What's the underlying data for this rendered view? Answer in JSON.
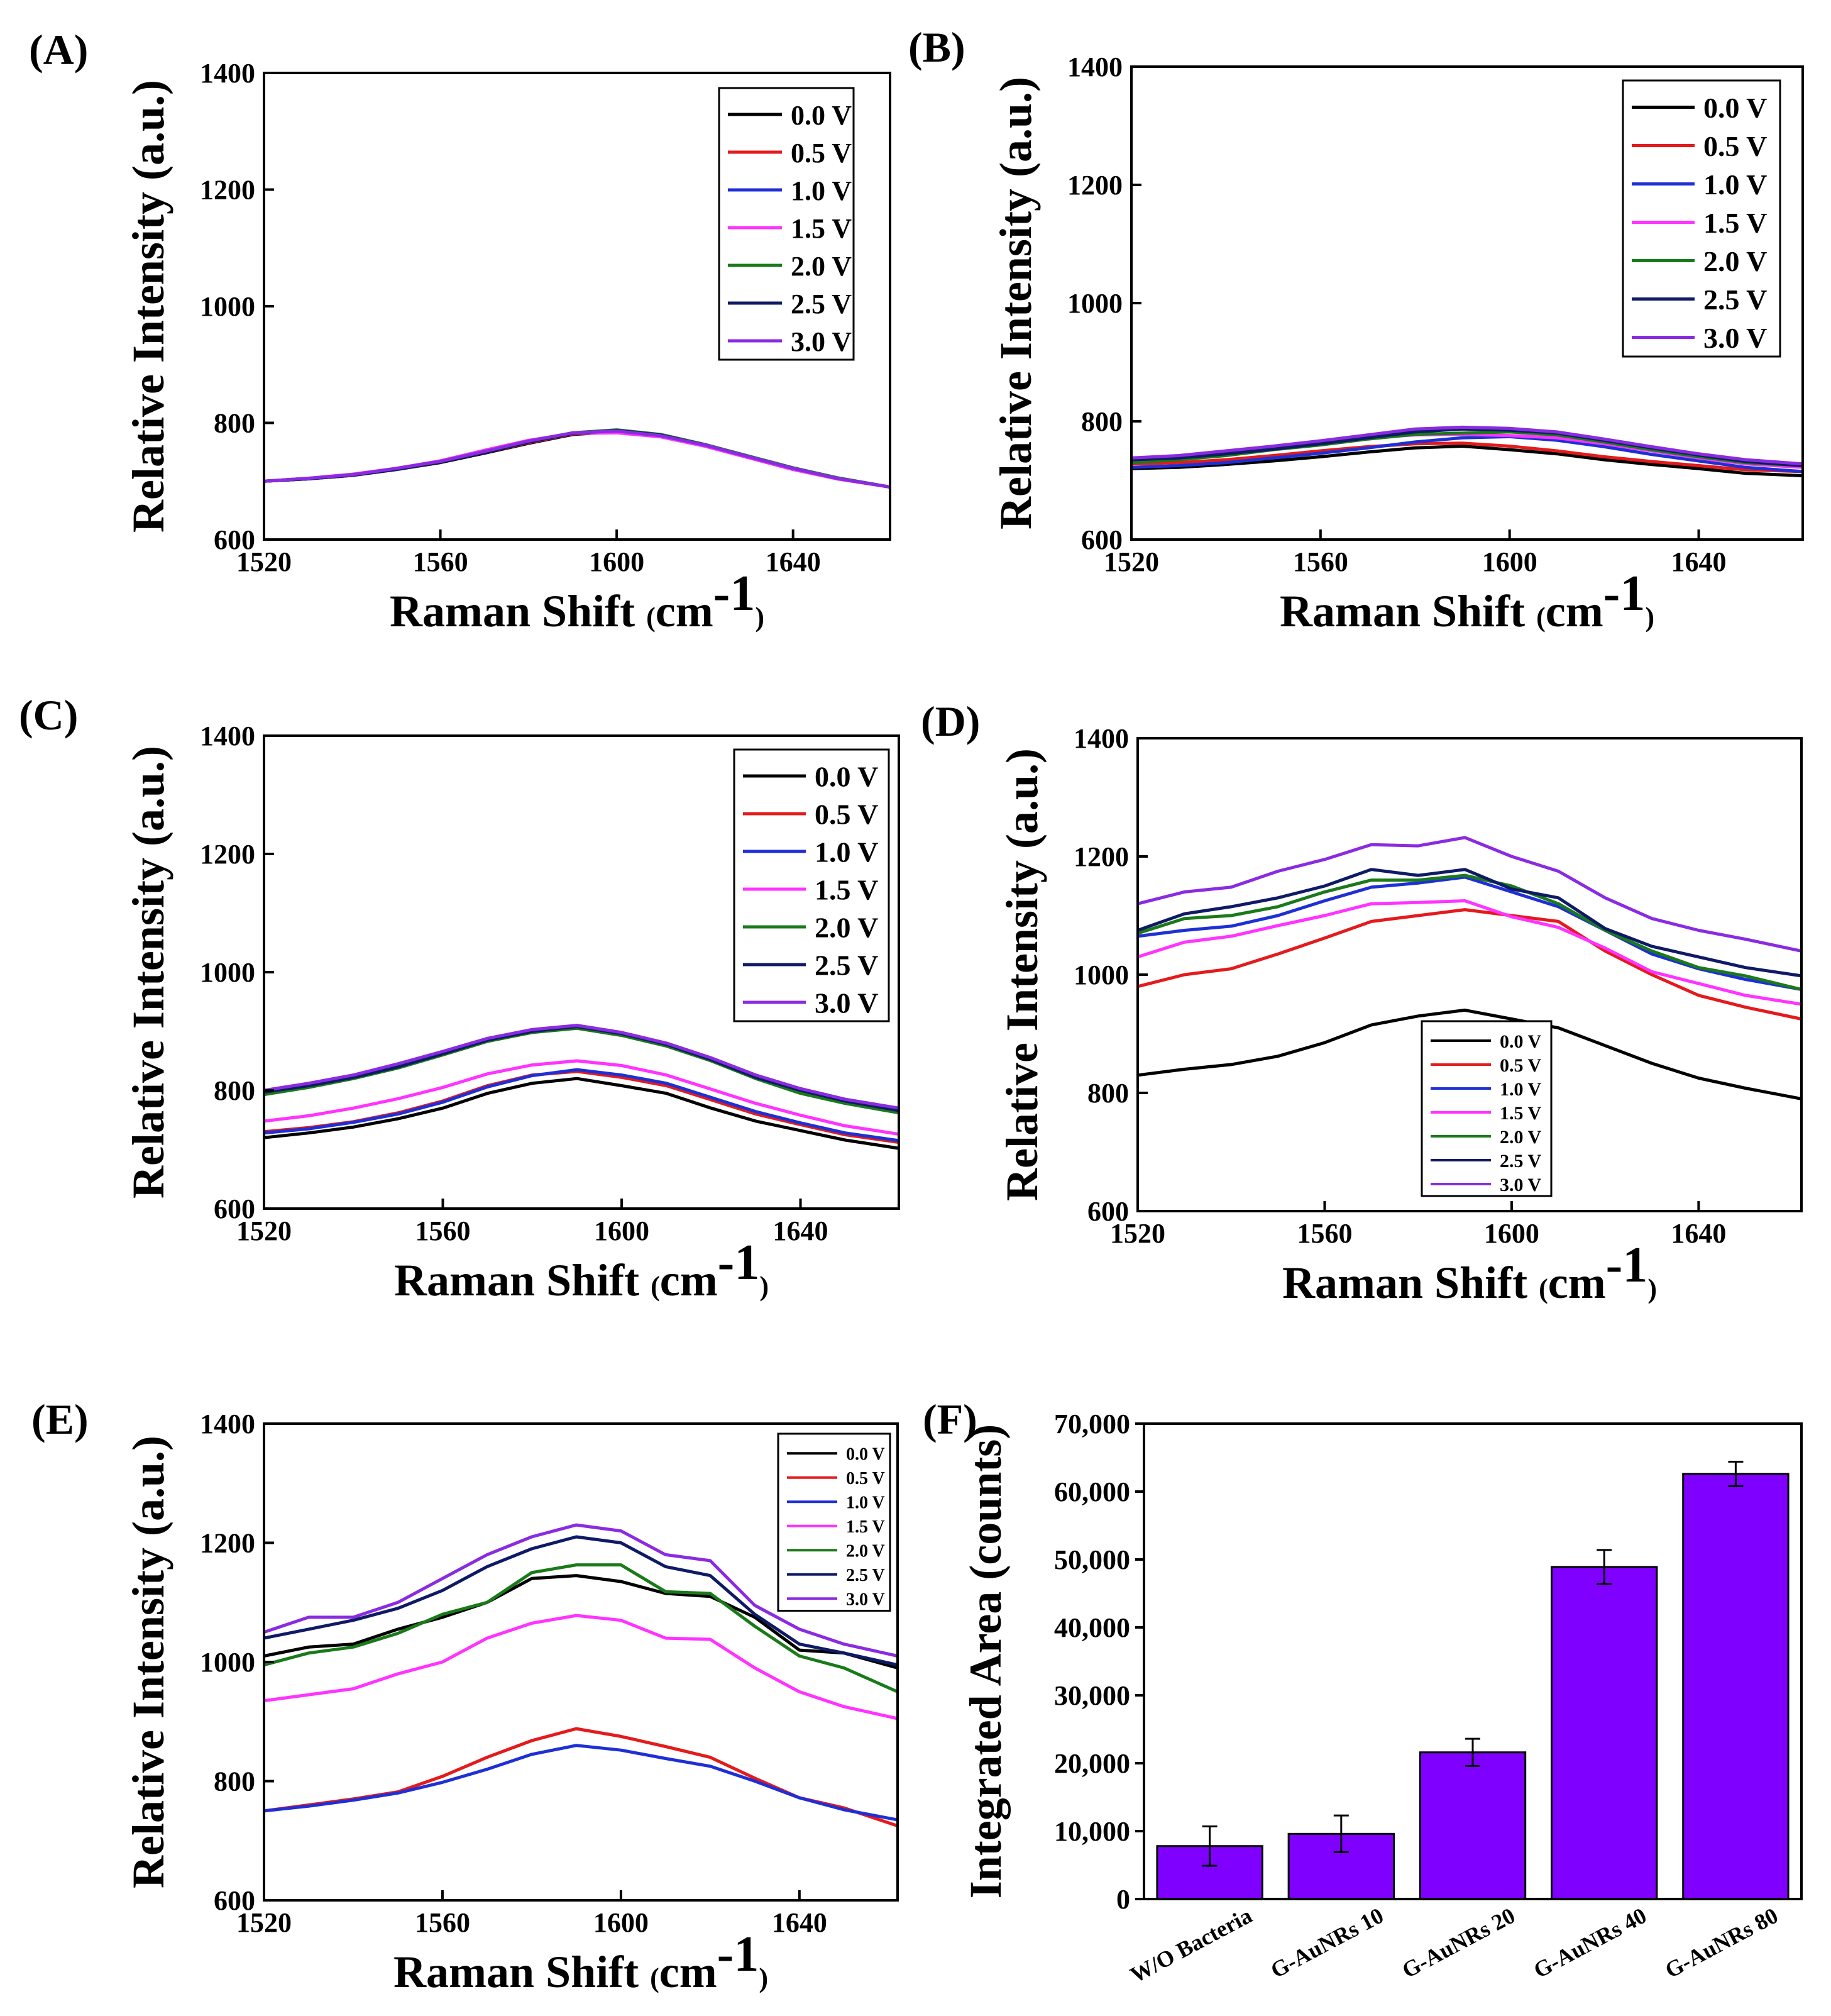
{
  "figure": {
    "type": "multi-panel spectra figure"
  },
  "legend_labels": [
    "0.0 V",
    "0.5 V",
    "1.0 V",
    "1.5 V",
    "2.0 V",
    "2.5 V",
    "3.0 V"
  ],
  "series_colors": [
    "#000000",
    "#e41a1c",
    "#1f2fd6",
    "#ff33ff",
    "#1a7a1a",
    "#0f1a66",
    "#8a2be2"
  ],
  "chart_data": [
    {
      "panel": "(A)",
      "type": "line",
      "xlabel": "Raman Shift",
      "xunit": "cm",
      "xunit_sup": "-1",
      "ylabel": "Relative Intensity (a.u.)",
      "xlim": [
        1520,
        1662
      ],
      "ylim": [
        600,
        1400
      ],
      "xticks": [
        1520,
        1560,
        1600,
        1640
      ],
      "yticks": [
        600,
        800,
        1000,
        1200,
        1400
      ],
      "legend": "top-right",
      "x": [
        1520,
        1530,
        1540,
        1550,
        1560,
        1570,
        1580,
        1590,
        1600,
        1610,
        1620,
        1630,
        1640,
        1650,
        1662
      ],
      "series": [
        {
          "name": "0.0 V",
          "values": [
            700,
            704,
            710,
            720,
            732,
            748,
            765,
            780,
            785,
            778,
            762,
            742,
            722,
            705,
            690
          ]
        },
        {
          "name": "0.5 V",
          "values": [
            700,
            704,
            710,
            720,
            733,
            749,
            766,
            781,
            784,
            777,
            761,
            741,
            721,
            704,
            690
          ]
        },
        {
          "name": "1.0 V",
          "values": [
            700,
            705,
            711,
            721,
            733,
            750,
            767,
            782,
            786,
            779,
            762,
            742,
            722,
            705,
            690
          ]
        },
        {
          "name": "1.5 V",
          "values": [
            700,
            705,
            712,
            722,
            735,
            753,
            770,
            782,
            783,
            776,
            760,
            740,
            720,
            704,
            690
          ]
        },
        {
          "name": "2.0 V",
          "values": [
            700,
            704,
            711,
            721,
            734,
            750,
            768,
            783,
            788,
            780,
            763,
            743,
            723,
            706,
            690
          ]
        },
        {
          "name": "2.5 V",
          "values": [
            700,
            704,
            710,
            720,
            733,
            749,
            767,
            782,
            787,
            779,
            762,
            742,
            722,
            705,
            690
          ]
        },
        {
          "name": "3.0 V",
          "values": [
            700,
            705,
            711,
            722,
            734,
            751,
            769,
            783,
            786,
            778,
            762,
            742,
            722,
            705,
            690
          ]
        }
      ]
    },
    {
      "panel": "(B)",
      "type": "line",
      "xlabel": "Raman Shift",
      "xunit": "cm",
      "xunit_sup": "-1",
      "ylabel": "Relative Intensity (a.u.)",
      "xlim": [
        1520,
        1662
      ],
      "ylim": [
        600,
        1400
      ],
      "xticks": [
        1520,
        1560,
        1600,
        1640
      ],
      "yticks": [
        600,
        800,
        1000,
        1200,
        1400
      ],
      "legend": "top-right",
      "x": [
        1520,
        1530,
        1540,
        1550,
        1560,
        1570,
        1580,
        1590,
        1600,
        1610,
        1620,
        1630,
        1640,
        1650,
        1662
      ],
      "series": [
        {
          "name": "0.0 V",
          "values": [
            720,
            722,
            727,
            733,
            740,
            748,
            755,
            758,
            752,
            745,
            735,
            727,
            720,
            712,
            708
          ]
        },
        {
          "name": "0.5 V",
          "values": [
            728,
            730,
            735,
            742,
            750,
            757,
            762,
            763,
            758,
            750,
            740,
            732,
            725,
            718,
            715
          ]
        },
        {
          "name": "1.0 V",
          "values": [
            722,
            725,
            730,
            738,
            746,
            755,
            765,
            772,
            774,
            768,
            757,
            744,
            733,
            722,
            715
          ]
        },
        {
          "name": "1.5 V",
          "values": [
            735,
            740,
            748,
            758,
            766,
            772,
            777,
            778,
            776,
            772,
            762,
            750,
            738,
            728,
            722
          ]
        },
        {
          "name": "2.0 V",
          "values": [
            730,
            735,
            742,
            752,
            760,
            770,
            778,
            780,
            782,
            777,
            765,
            752,
            740,
            730,
            725
          ]
        },
        {
          "name": "2.5 V",
          "values": [
            735,
            738,
            745,
            753,
            762,
            772,
            782,
            787,
            785,
            780,
            768,
            755,
            743,
            732,
            725
          ]
        },
        {
          "name": "3.0 V",
          "values": [
            738,
            742,
            750,
            758,
            767,
            777,
            787,
            790,
            788,
            782,
            770,
            757,
            745,
            735,
            728
          ]
        }
      ]
    },
    {
      "panel": "(C)",
      "type": "line",
      "xlabel": "Raman Shift",
      "xunit": "cm",
      "xunit_sup": "-1",
      "ylabel": "Relative Intensity (a.u.)",
      "xlim": [
        1520,
        1662
      ],
      "ylim": [
        600,
        1400
      ],
      "xticks": [
        1520,
        1560,
        1600,
        1640
      ],
      "yticks": [
        600,
        800,
        1000,
        1200,
        1400
      ],
      "legend": "top-right",
      "x": [
        1520,
        1530,
        1540,
        1550,
        1560,
        1570,
        1580,
        1590,
        1600,
        1610,
        1620,
        1630,
        1640,
        1650,
        1662
      ],
      "series": [
        {
          "name": "0.0 V",
          "values": [
            720,
            728,
            738,
            752,
            770,
            795,
            812,
            820,
            808,
            795,
            770,
            748,
            732,
            716,
            702
          ]
        },
        {
          "name": "0.5 V",
          "values": [
            730,
            737,
            747,
            762,
            782,
            808,
            826,
            832,
            822,
            808,
            784,
            760,
            742,
            725,
            712
          ]
        },
        {
          "name": "1.0 V",
          "values": [
            728,
            735,
            746,
            760,
            780,
            806,
            825,
            835,
            826,
            812,
            788,
            764,
            745,
            728,
            715
          ]
        },
        {
          "name": "1.5 V",
          "values": [
            748,
            757,
            770,
            786,
            805,
            828,
            843,
            850,
            842,
            826,
            802,
            778,
            758,
            740,
            726
          ]
        },
        {
          "name": "2.0 V",
          "values": [
            793,
            805,
            820,
            838,
            860,
            883,
            898,
            905,
            893,
            875,
            850,
            820,
            795,
            778,
            762
          ]
        },
        {
          "name": "2.5 V",
          "values": [
            797,
            808,
            822,
            840,
            862,
            885,
            900,
            908,
            896,
            878,
            852,
            822,
            800,
            782,
            766
          ]
        },
        {
          "name": "3.0 V",
          "values": [
            800,
            812,
            826,
            845,
            866,
            888,
            903,
            910,
            898,
            880,
            855,
            826,
            803,
            785,
            770
          ]
        }
      ]
    },
    {
      "panel": "(D)",
      "type": "line",
      "xlabel": "Raman Shift",
      "xunit": "cm",
      "xunit_sup": "-1",
      "ylabel": "Relative Intensity (a.u.)",
      "xlim": [
        1520,
        1662
      ],
      "ylim": [
        600,
        1400
      ],
      "xticks": [
        1520,
        1560,
        1600,
        1640
      ],
      "yticks": [
        600,
        800,
        1000,
        1200,
        1400
      ],
      "legend": "bottom-center",
      "x": [
        1520,
        1530,
        1540,
        1550,
        1560,
        1570,
        1580,
        1590,
        1600,
        1610,
        1620,
        1630,
        1640,
        1650,
        1662
      ],
      "series": [
        {
          "name": "0.0 V",
          "values": [
            830,
            840,
            848,
            862,
            885,
            915,
            930,
            940,
            925,
            910,
            880,
            850,
            825,
            808,
            790
          ]
        },
        {
          "name": "0.5 V",
          "values": [
            980,
            1000,
            1010,
            1035,
            1062,
            1090,
            1100,
            1110,
            1100,
            1090,
            1040,
            1000,
            965,
            945,
            925
          ]
        },
        {
          "name": "1.0 V",
          "values": [
            1065,
            1075,
            1082,
            1100,
            1125,
            1148,
            1155,
            1165,
            1140,
            1115,
            1075,
            1035,
            1010,
            992,
            975
          ]
        },
        {
          "name": "1.5 V",
          "values": [
            1030,
            1055,
            1065,
            1083,
            1100,
            1120,
            1122,
            1125,
            1098,
            1080,
            1045,
            1005,
            985,
            965,
            950
          ]
        },
        {
          "name": "2.0 V",
          "values": [
            1070,
            1095,
            1100,
            1115,
            1140,
            1160,
            1160,
            1168,
            1150,
            1120,
            1075,
            1040,
            1012,
            998,
            975
          ]
        },
        {
          "name": "2.5 V",
          "values": [
            1075,
            1103,
            1115,
            1130,
            1150,
            1178,
            1168,
            1178,
            1145,
            1130,
            1078,
            1048,
            1030,
            1012,
            998
          ]
        },
        {
          "name": "3.0 V",
          "values": [
            1120,
            1140,
            1148,
            1175,
            1195,
            1220,
            1218,
            1232,
            1200,
            1175,
            1130,
            1095,
            1075,
            1060,
            1040
          ]
        }
      ]
    },
    {
      "panel": "(E)",
      "type": "line",
      "xlabel": "Raman Shift",
      "xunit": "cm",
      "xunit_sup": "-1",
      "ylabel": "Relative Intensity (a.u.)",
      "xlim": [
        1520,
        1662
      ],
      "ylim": [
        600,
        1400
      ],
      "xticks": [
        1520,
        1560,
        1600,
        1640
      ],
      "yticks": [
        600,
        800,
        1000,
        1200,
        1400
      ],
      "legend": "top-right",
      "x": [
        1520,
        1530,
        1540,
        1550,
        1560,
        1570,
        1580,
        1590,
        1600,
        1610,
        1620,
        1630,
        1640,
        1650,
        1662
      ],
      "series": [
        {
          "name": "0.0 V",
          "values": [
            1010,
            1025,
            1030,
            1055,
            1075,
            1100,
            1140,
            1145,
            1135,
            1115,
            1110,
            1075,
            1020,
            1015,
            990
          ]
        },
        {
          "name": "0.5 V",
          "values": [
            750,
            760,
            770,
            782,
            808,
            840,
            868,
            888,
            875,
            858,
            840,
            805,
            772,
            755,
            725
          ]
        },
        {
          "name": "1.0 V",
          "values": [
            750,
            758,
            768,
            780,
            798,
            820,
            845,
            860,
            852,
            838,
            825,
            800,
            772,
            752,
            735
          ]
        },
        {
          "name": "1.5 V",
          "values": [
            935,
            945,
            955,
            980,
            1000,
            1040,
            1065,
            1078,
            1070,
            1040,
            1038,
            990,
            950,
            925,
            905
          ]
        },
        {
          "name": "2.0 V",
          "values": [
            995,
            1015,
            1025,
            1048,
            1080,
            1100,
            1150,
            1163,
            1163,
            1118,
            1115,
            1060,
            1010,
            990,
            950
          ]
        },
        {
          "name": "2.5 V",
          "values": [
            1040,
            1055,
            1070,
            1090,
            1120,
            1160,
            1190,
            1210,
            1200,
            1160,
            1145,
            1080,
            1030,
            1015,
            995
          ]
        },
        {
          "name": "3.0 V",
          "values": [
            1050,
            1075,
            1075,
            1100,
            1140,
            1180,
            1210,
            1230,
            1220,
            1180,
            1170,
            1095,
            1055,
            1030,
            1010
          ]
        }
      ]
    },
    {
      "panel": "(F)",
      "type": "bar",
      "ylabel": "Integrated Area (counts)",
      "ylim": [
        0,
        70000
      ],
      "yticks": [
        0,
        10000,
        20000,
        30000,
        40000,
        50000,
        60000,
        70000
      ],
      "ytick_labels": [
        "0",
        "10,000",
        "20,000",
        "30,000",
        "40,000",
        "50,000",
        "60,000",
        "70,000"
      ],
      "categories": [
        "W/O Bacteria",
        "G-AuNRs 10",
        "G-AuNRs 20",
        "G-AuNRs 40",
        "G-AuNRs 80"
      ],
      "values": [
        7800,
        9600,
        21600,
        48900,
        62600
      ],
      "errors": [
        2900,
        2700,
        2000,
        2500,
        1800
      ],
      "bar_color": "#8000ff"
    }
  ]
}
